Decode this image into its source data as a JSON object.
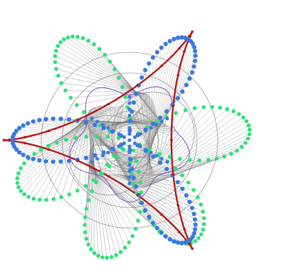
{
  "colors": {
    "background": "#ffffff",
    "green_dots": "#2fe07a",
    "blue_dots": "#3a78e0",
    "red_dots": "#b31a1a",
    "red_curve": "#b01515",
    "guide_lines": "#6a6a6a",
    "circles": "#7a7a7a",
    "purple_curve": "#7b4fc0"
  },
  "figure": {
    "green_petals": 5,
    "blue_lobes": 3,
    "red_cusps": 3
  }
}
